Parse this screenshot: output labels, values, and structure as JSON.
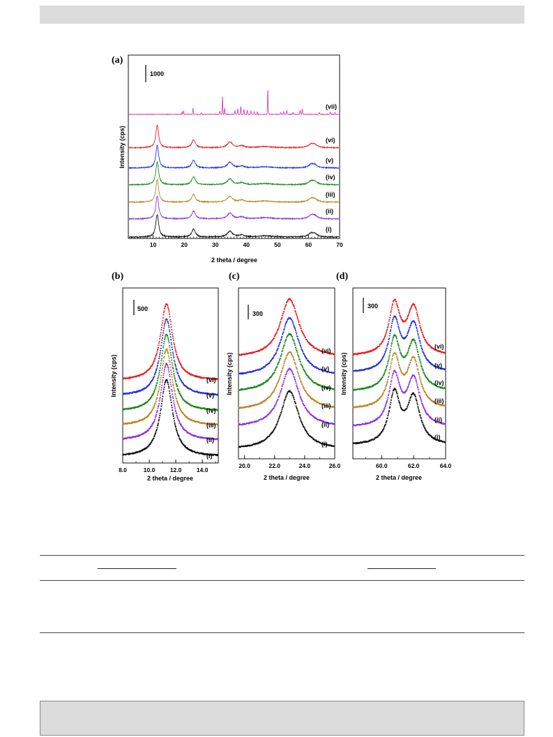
{
  "colors": {
    "vii": "#e040c0",
    "vi": "#e82020",
    "v": "#2233dd",
    "iv": "#1a8a1a",
    "iii": "#b8862a",
    "ii": "#9030e0",
    "i": "#111111"
  },
  "chart_data": [
    {
      "panel": "(a)",
      "type": "line",
      "xlabel": "2 theta / degree",
      "ylabel": "Intensity (cps)",
      "scale_bar": "1000",
      "xlim": [
        2,
        70
      ],
      "xticks": [
        "10",
        "20",
        "30",
        "40",
        "50",
        "60",
        "70"
      ],
      "series_labels": [
        "(vii)",
        "(vi)",
        "(v)",
        "(iv)",
        "(iii)",
        "(ii)",
        "(i)"
      ],
      "peaks": {
        "broad": [
          {
            "x": 11.3,
            "height": 1300
          },
          {
            "x": 23.0,
            "height": 450
          },
          {
            "x": 34.7,
            "height": 330
          },
          {
            "x": 38.5,
            "height": 110
          },
          {
            "x": 46.0,
            "height": 70
          },
          {
            "x": 60.8,
            "height": 180
          },
          {
            "x": 62.0,
            "height": 160
          }
        ],
        "sharp_vii": [
          {
            "x": 19.3,
            "height": 150
          },
          {
            "x": 19.8,
            "height": 200
          },
          {
            "x": 22.8,
            "height": 360
          },
          {
            "x": 25.5,
            "height": 80
          },
          {
            "x": 31.5,
            "height": 200
          },
          {
            "x": 32.3,
            "height": 1020
          },
          {
            "x": 33.0,
            "height": 380
          },
          {
            "x": 36.3,
            "height": 210
          },
          {
            "x": 37.2,
            "height": 330
          },
          {
            "x": 38.2,
            "height": 470
          },
          {
            "x": 39.2,
            "height": 300
          },
          {
            "x": 40.3,
            "height": 250
          },
          {
            "x": 41.5,
            "height": 210
          },
          {
            "x": 42.5,
            "height": 160
          },
          {
            "x": 43.5,
            "height": 140
          },
          {
            "x": 46.9,
            "height": 1450
          },
          {
            "x": 51.0,
            "height": 110
          },
          {
            "x": 52.0,
            "height": 180
          },
          {
            "x": 53.0,
            "height": 230
          },
          {
            "x": 55.0,
            "height": 110
          },
          {
            "x": 57.3,
            "height": 230
          },
          {
            "x": 58.0,
            "height": 310
          },
          {
            "x": 63.5,
            "height": 100
          },
          {
            "x": 67.0,
            "height": 150
          },
          {
            "x": 68.5,
            "height": 110
          }
        ]
      }
    },
    {
      "panel": "(b)",
      "type": "line",
      "xlabel": "2 theta / degree",
      "ylabel": "Intensity (cps)",
      "scale_bar": "500",
      "xlim": [
        8.0,
        15.2
      ],
      "xticks": [
        "8.0",
        "10.0",
        "12.0",
        "14.0"
      ],
      "series_labels": [
        "(vi)",
        "(v)",
        "(iv)",
        "(iii)",
        "(ii)",
        "(i)"
      ],
      "peak_center": 11.3
    },
    {
      "panel": "(c)",
      "type": "line",
      "xlabel": "2 theta / degree",
      "ylabel": "Intensity (cps)",
      "scale_bar": "300",
      "xlim": [
        19.6,
        26.0
      ],
      "xticks": [
        "20.0",
        "22.0",
        "24.0",
        "26.0"
      ],
      "series_labels": [
        "(vi)",
        "(v)",
        "(iv)",
        "(iii)",
        "(ii)",
        "(i)"
      ],
      "peak_center": 23.0
    },
    {
      "panel": "(d)",
      "type": "line",
      "xlabel": "2 theta / degree",
      "ylabel": "Intensity (cps)",
      "scale_bar": "300",
      "xlim": [
        58.2,
        64.0
      ],
      "xticks": [
        "60.0",
        "62.0",
        "64.0"
      ],
      "series_labels": [
        "(vi)",
        "(v)",
        "(iv)",
        "(iii)",
        "(ii)",
        "(i)"
      ],
      "peak_centers": [
        60.8,
        62.0
      ]
    }
  ]
}
